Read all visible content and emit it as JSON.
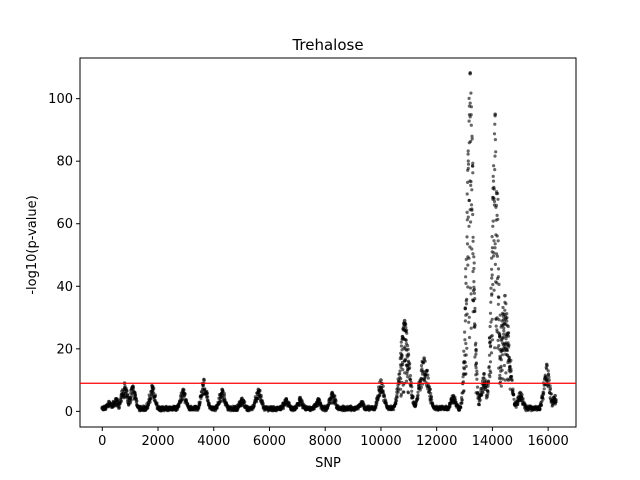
{
  "chart_data": {
    "type": "scatter",
    "title": "Trehalose",
    "xlabel": "SNP",
    "ylabel": "-log10(p-value)",
    "xlim": [
      -800,
      17000
    ],
    "ylim": [
      -5,
      113
    ],
    "xticks": [
      0,
      2000,
      4000,
      6000,
      8000,
      10000,
      12000,
      14000,
      16000
    ],
    "yticks": [
      0,
      20,
      40,
      60,
      80,
      100
    ],
    "grid": false,
    "legend": "none",
    "point_color": "#000000",
    "threshold": {
      "y": 9,
      "color": "#ff0000"
    },
    "peaks": [
      {
        "x": 250,
        "y": 3
      },
      {
        "x": 500,
        "y": 4
      },
      {
        "x": 800,
        "y": 9
      },
      {
        "x": 1100,
        "y": 8
      },
      {
        "x": 1800,
        "y": 8
      },
      {
        "x": 2900,
        "y": 7
      },
      {
        "x": 3650,
        "y": 10
      },
      {
        "x": 4300,
        "y": 7
      },
      {
        "x": 5000,
        "y": 4
      },
      {
        "x": 5600,
        "y": 7
      },
      {
        "x": 6600,
        "y": 4
      },
      {
        "x": 7100,
        "y": 4
      },
      {
        "x": 7750,
        "y": 4
      },
      {
        "x": 8250,
        "y": 6
      },
      {
        "x": 9300,
        "y": 3
      },
      {
        "x": 10000,
        "y": 10
      },
      {
        "x": 10850,
        "y": 29
      },
      {
        "x": 11550,
        "y": 17
      },
      {
        "x": 12600,
        "y": 5
      },
      {
        "x": 13200,
        "y": 108
      },
      {
        "x": 13700,
        "y": 12
      },
      {
        "x": 14100,
        "y": 95
      },
      {
        "x": 14450,
        "y": 37
      },
      {
        "x": 15000,
        "y": 6
      },
      {
        "x": 15950,
        "y": 15
      },
      {
        "x": 16250,
        "y": 5
      }
    ]
  }
}
